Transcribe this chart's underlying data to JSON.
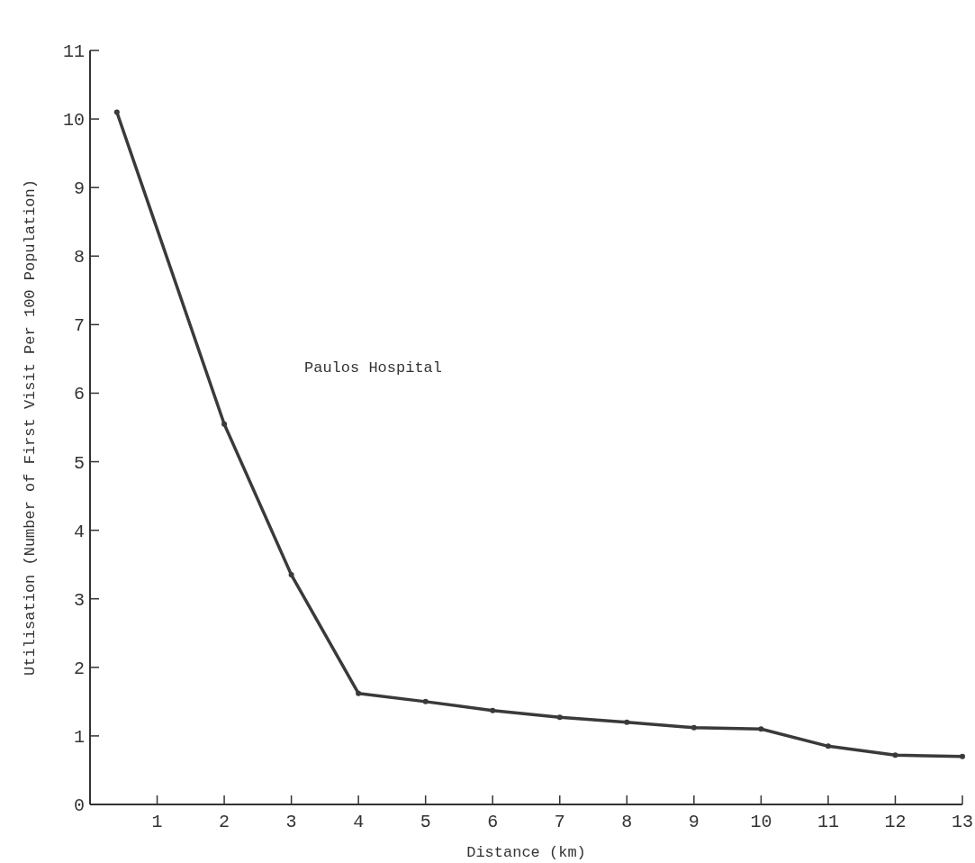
{
  "chart_data": {
    "type": "line",
    "xlabel": "Distance (km)",
    "ylabel": "Utilisation (Number of First Visit Per 100 Population)",
    "annotations": [
      "Paulos Hospital"
    ],
    "x": [
      0.4,
      2,
      3,
      4,
      5,
      6,
      7,
      8,
      9,
      10,
      11,
      12,
      13
    ],
    "series": [
      {
        "color": "#3a3a3a",
        "values": [
          10.1,
          5.55,
          3.35,
          1.62,
          1.5,
          1.37,
          1.27,
          1.2,
          1.12,
          1.1,
          0.85,
          0.72,
          0.7
        ]
      }
    ],
    "xlim": [
      0,
      13
    ],
    "xticks": [
      {
        "value": 0,
        "label": null
      },
      1,
      2,
      3,
      4,
      5,
      6,
      7,
      8,
      9,
      10,
      11,
      12,
      13
    ],
    "ylim": [
      0,
      11
    ],
    "yticks": [
      0,
      1,
      2,
      3,
      4,
      5,
      6,
      7,
      8,
      9,
      10,
      11
    ],
    "grid": false,
    "marker": "circle",
    "line_style": "solid"
  }
}
